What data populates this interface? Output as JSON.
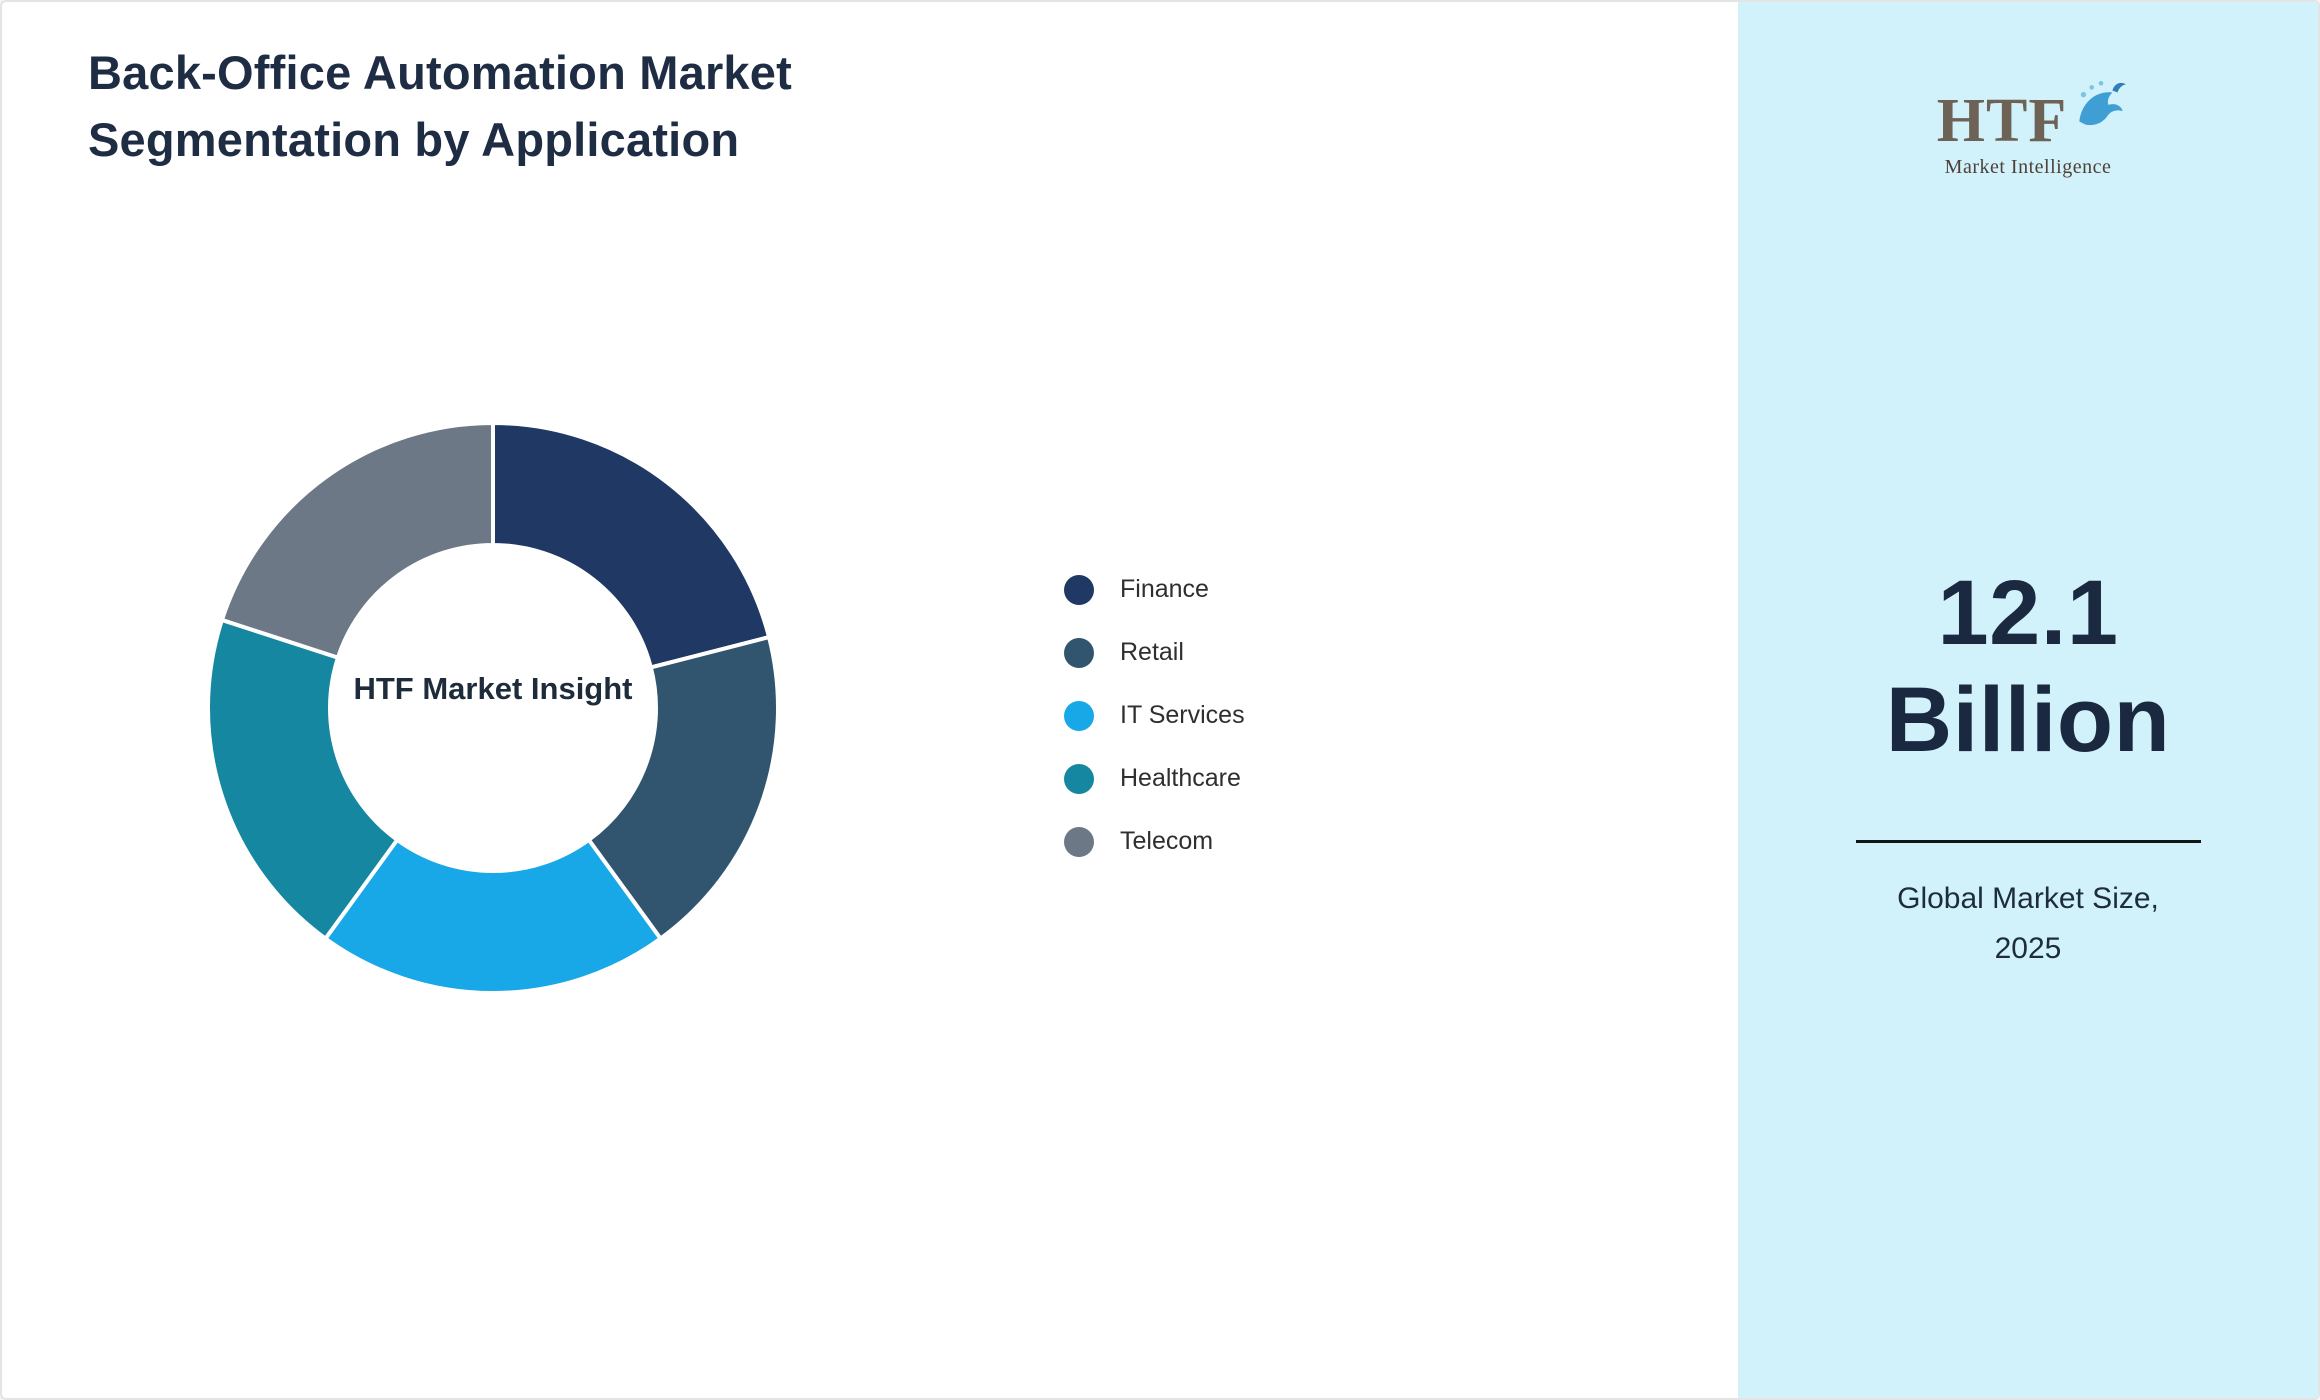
{
  "title": {
    "line1": "Back-Office Automation Market",
    "line2": "Segmentation by Application"
  },
  "chart_data": {
    "type": "pie",
    "variant": "donut",
    "title": "Back-Office Automation Market Segmentation by Application",
    "center_label": "HTF Market Insight",
    "legend_position": "right",
    "segments": [
      {
        "label": "Finance",
        "value": 21,
        "color": "#1f3864"
      },
      {
        "label": "Retail",
        "value": 19,
        "color": "#31556f"
      },
      {
        "label": "IT Services",
        "value": 20,
        "color": "#18a8e8"
      },
      {
        "label": "Healthcare",
        "value": 20,
        "color": "#1687a0"
      },
      {
        "label": "Telecom",
        "value": 20,
        "color": "#6d7887"
      }
    ]
  },
  "sidebar": {
    "background": "#d1f2fb",
    "logo": {
      "text": "HTF",
      "subtext": "Market Intelligence",
      "icon": "dolphin-splash-icon"
    },
    "market_size_value": "12.1",
    "market_size_unit": "Billion",
    "caption_line1": "Global Market Size,",
    "caption_line2": "2025"
  }
}
